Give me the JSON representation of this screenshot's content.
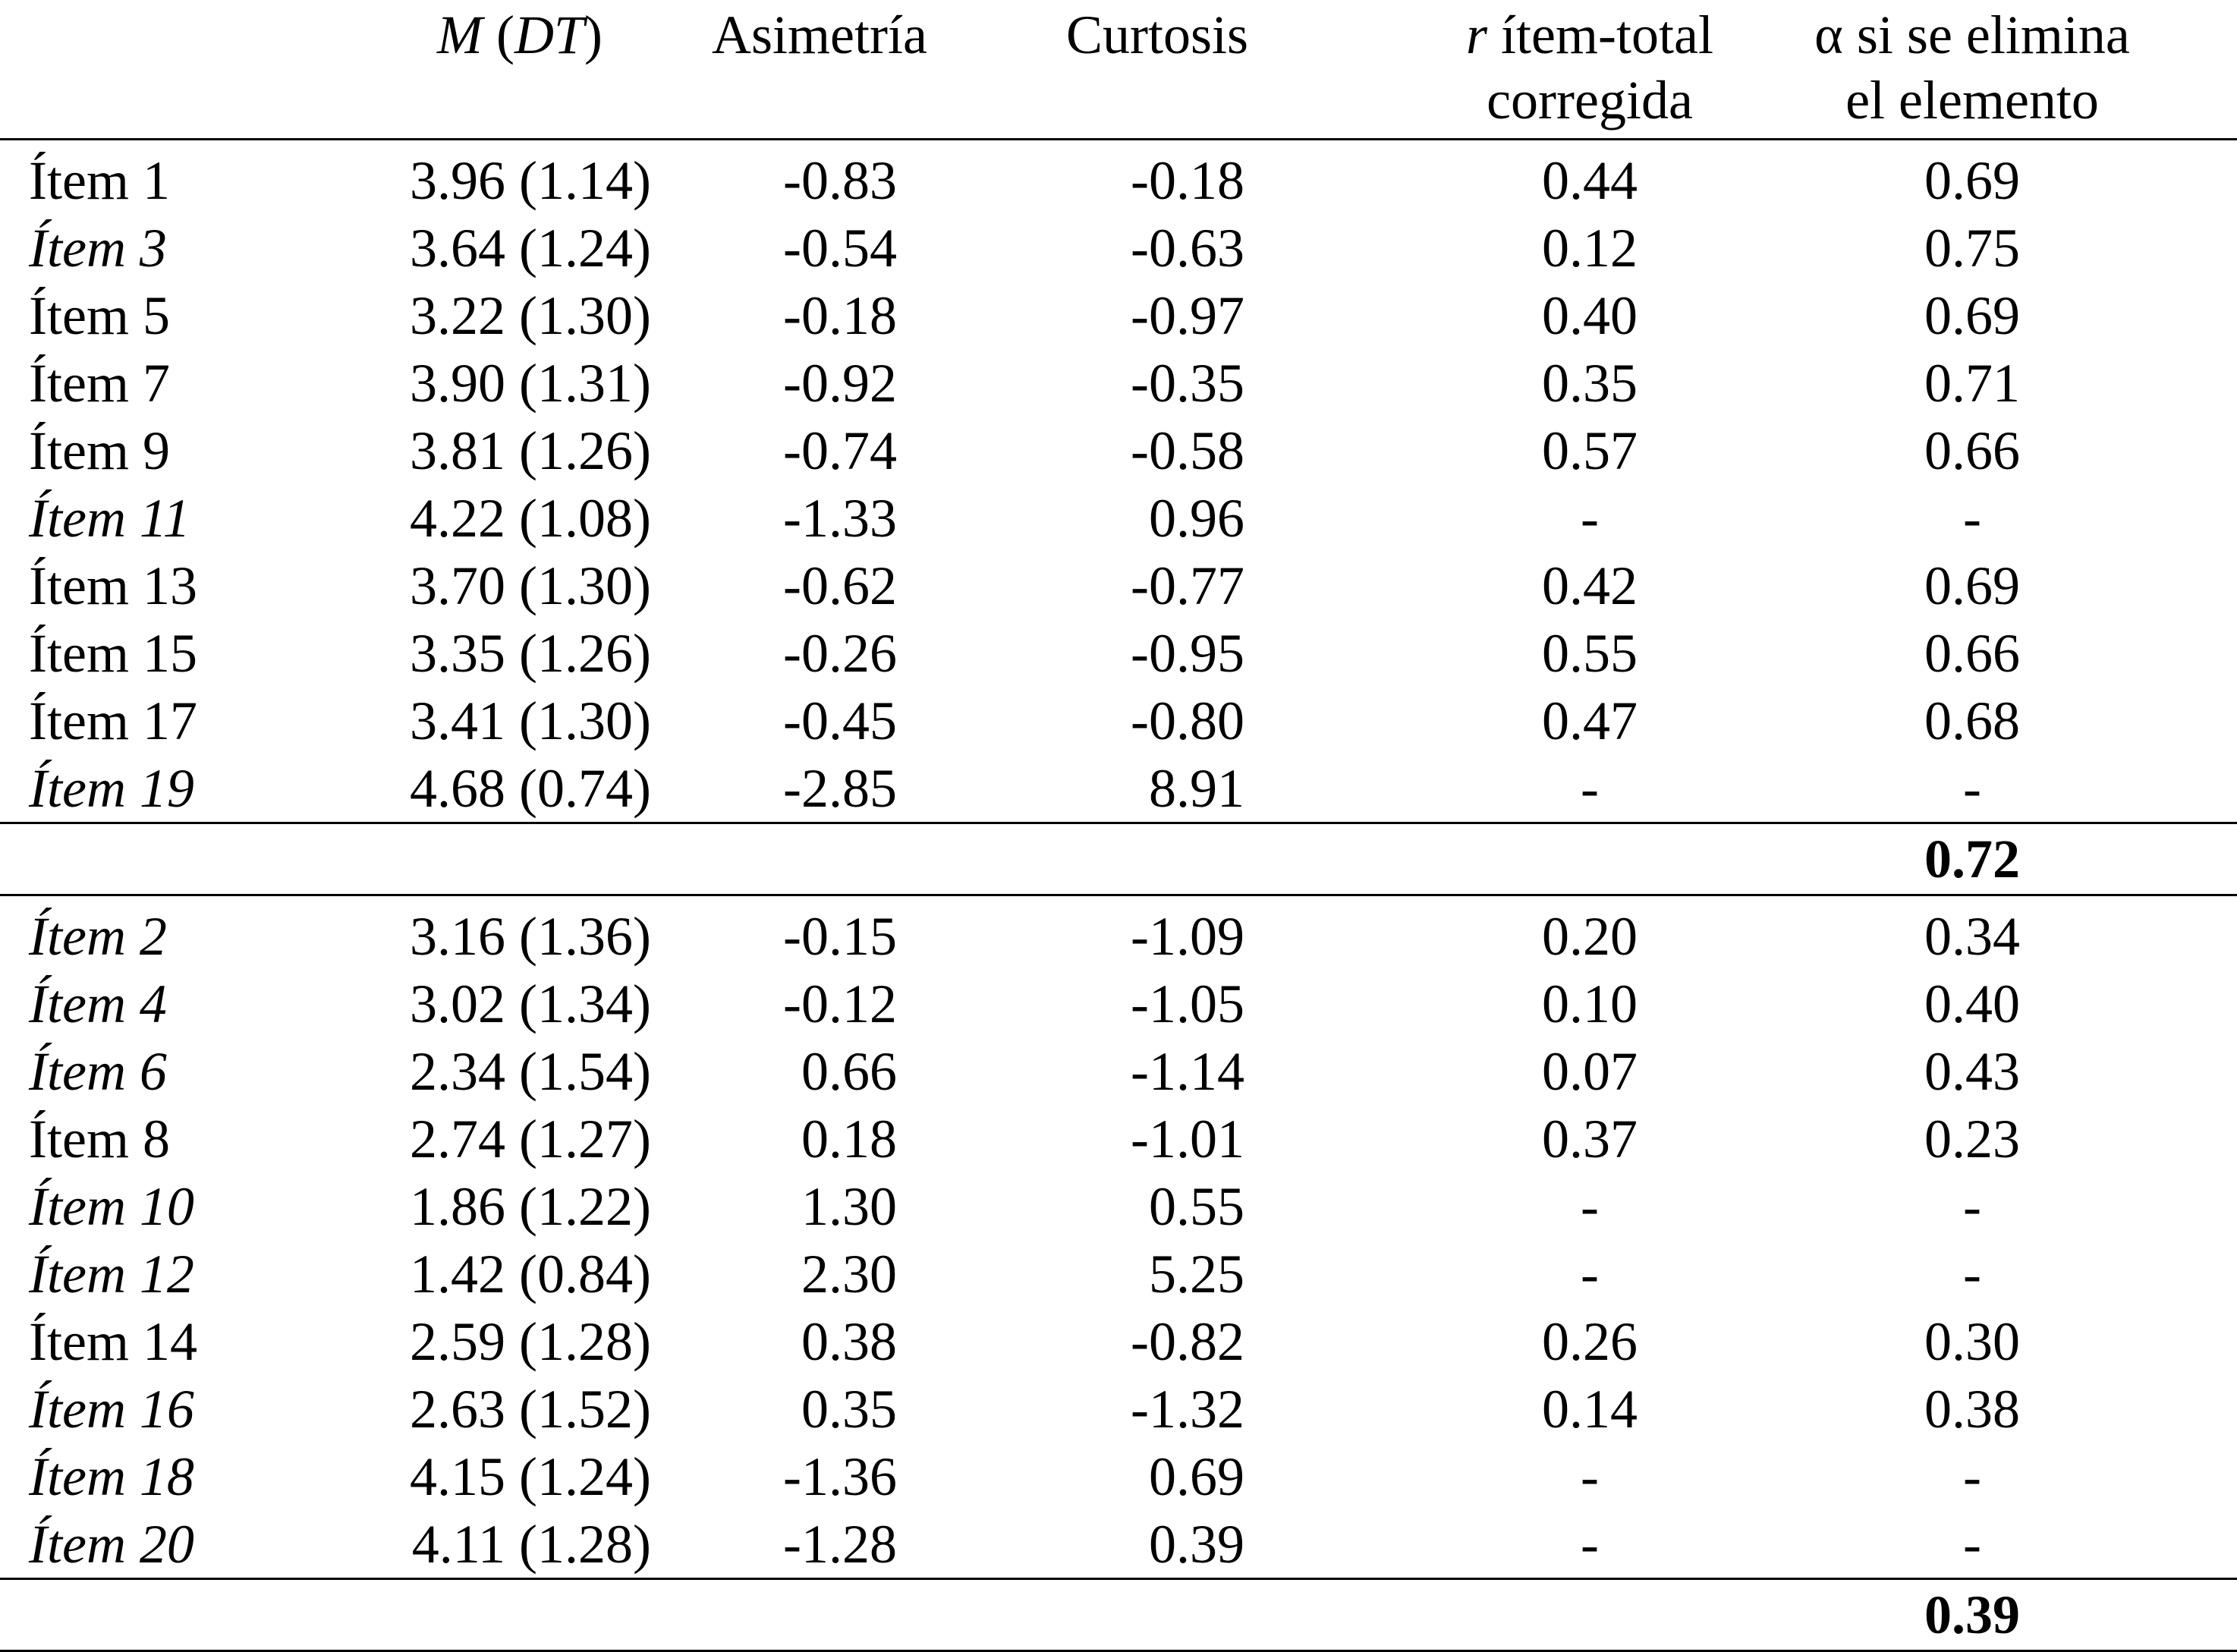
{
  "table": {
    "headers": {
      "item": "",
      "m_dt_m": "M",
      "m_dt_open": " (",
      "m_dt_dt": "DT",
      "m_dt_close": ")",
      "asimetria": "Asimetría",
      "curtosis": "Curtosis",
      "r_italic": "r",
      "r_line1_rest": " ítem-total",
      "r_line2": "corregida",
      "alpha_line1": "α si se elimina",
      "alpha_line2": "el elemento"
    },
    "group1": {
      "rows": [
        {
          "item": "Ítem 1",
          "italic": false,
          "mdt": "3.96 (1.14)",
          "asimetria": "-0.83",
          "curtosis": "-0.18",
          "r": "0.44",
          "alpha": "0.69"
        },
        {
          "item": "Ítem 3",
          "italic": true,
          "mdt": "3.64 (1.24)",
          "asimetria": "-0.54",
          "curtosis": "-0.63",
          "r": "0.12",
          "alpha": "0.75"
        },
        {
          "item": "Ítem 5",
          "italic": false,
          "mdt": "3.22 (1.30)",
          "asimetria": "-0.18",
          "curtosis": "-0.97",
          "r": "0.40",
          "alpha": "0.69"
        },
        {
          "item": "Ítem 7",
          "italic": false,
          "mdt": "3.90 (1.31)",
          "asimetria": "-0.92",
          "curtosis": "-0.35",
          "r": "0.35",
          "alpha": "0.71"
        },
        {
          "item": "Ítem 9",
          "italic": false,
          "mdt": "3.81 (1.26)",
          "asimetria": "-0.74",
          "curtosis": "-0.58",
          "r": "0.57",
          "alpha": "0.66"
        },
        {
          "item": "Ítem 11",
          "italic": true,
          "mdt": "4.22 (1.08)",
          "asimetria": "-1.33",
          "curtosis": "0.96",
          "r": "-",
          "alpha": "-"
        },
        {
          "item": "Ítem 13",
          "italic": false,
          "mdt": "3.70 (1.30)",
          "asimetria": "-0.62",
          "curtosis": "-0.77",
          "r": "0.42",
          "alpha": "0.69"
        },
        {
          "item": "Ítem 15",
          "italic": false,
          "mdt": "3.35 (1.26)",
          "asimetria": "-0.26",
          "curtosis": "-0.95",
          "r": "0.55",
          "alpha": "0.66"
        },
        {
          "item": "Ítem 17",
          "italic": false,
          "mdt": "3.41 (1.30)",
          "asimetria": "-0.45",
          "curtosis": "-0.80",
          "r": "0.47",
          "alpha": "0.68"
        },
        {
          "item": "Ítem 19",
          "italic": true,
          "mdt": "4.68 (0.74)",
          "asimetria": "-2.85",
          "curtosis": "8.91",
          "r": "-",
          "alpha": "-"
        }
      ],
      "total_alpha": "0.72"
    },
    "group2": {
      "rows": [
        {
          "item": "Ítem 2",
          "italic": true,
          "mdt": "3.16 (1.36)",
          "asimetria": "-0.15",
          "curtosis": "-1.09",
          "r": "0.20",
          "alpha": "0.34"
        },
        {
          "item": "Ítem 4",
          "italic": true,
          "mdt": "3.02 (1.34)",
          "asimetria": "-0.12",
          "curtosis": "-1.05",
          "r": "0.10",
          "alpha": "0.40"
        },
        {
          "item": "Ítem 6",
          "italic": true,
          "mdt": "2.34 (1.54)",
          "asimetria": "0.66",
          "curtosis": "-1.14",
          "r": "0.07",
          "alpha": "0.43"
        },
        {
          "item": "Ítem 8",
          "italic": false,
          "mdt": "2.74 (1.27)",
          "asimetria": "0.18",
          "curtosis": "-1.01",
          "r": "0.37",
          "alpha": "0.23"
        },
        {
          "item": "Ítem 10",
          "italic": true,
          "mdt": "1.86 (1.22)",
          "asimetria": "1.30",
          "curtosis": "0.55",
          "r": "-",
          "alpha": "-"
        },
        {
          "item": "Ítem 12",
          "italic": true,
          "mdt": "1.42 (0.84)",
          "asimetria": "2.30",
          "curtosis": "5.25",
          "r": "-",
          "alpha": "-"
        },
        {
          "item": "Ítem 14",
          "italic": false,
          "mdt": "2.59 (1.28)",
          "asimetria": "0.38",
          "curtosis": "-0.82",
          "r": "0.26",
          "alpha": "0.30"
        },
        {
          "item": "Ítem 16",
          "italic": true,
          "mdt": "2.63 (1.52)",
          "asimetria": "0.35",
          "curtosis": "-1.32",
          "r": "0.14",
          "alpha": "0.38"
        },
        {
          "item": "Ítem 18",
          "italic": true,
          "mdt": "4.15 (1.24)",
          "asimetria": "-1.36",
          "curtosis": "0.69",
          "r": "-",
          "alpha": "-"
        },
        {
          "item": "Ítem 20",
          "italic": true,
          "mdt": "4.11 (1.28)",
          "asimetria": "-1.28",
          "curtosis": "0.39",
          "r": "-",
          "alpha": "-"
        }
      ],
      "total_alpha": "0.39"
    }
  }
}
